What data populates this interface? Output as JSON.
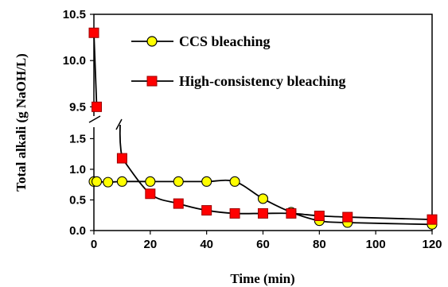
{
  "chart_data": {
    "type": "line",
    "xlabel": "Time (min)",
    "ylabel": "Total alkali (g NaOH/L)",
    "xlim": [
      0,
      120
    ],
    "x_ticks": [
      "0",
      "20",
      "40",
      "60",
      "80",
      "100",
      "120"
    ],
    "y_axis_break": true,
    "y_ticks_lower": [
      "0.0",
      "0.5",
      "1.0",
      "1.5"
    ],
    "ylim_lower": [
      0,
      1.7
    ],
    "y_ticks_upper": [
      "9.5",
      "10.0",
      "10.5"
    ],
    "ylim_upper": [
      9.4,
      10.5
    ],
    "grid": false,
    "legend_position": "top-right",
    "series": [
      {
        "name": "CCS bleaching",
        "marker": "circle",
        "marker_color": "#ffff00",
        "line_color": "#000000",
        "points": [
          {
            "x": 0,
            "y": 0.8
          },
          {
            "x": 1,
            "y": 0.8
          },
          {
            "x": 5,
            "y": 0.79
          },
          {
            "x": 10,
            "y": 0.8
          },
          {
            "x": 20,
            "y": 0.8
          },
          {
            "x": 30,
            "y": 0.8
          },
          {
            "x": 40,
            "y": 0.8
          },
          {
            "x": 50,
            "y": 0.8
          },
          {
            "x": 60,
            "y": 0.52
          },
          {
            "x": 70,
            "y": 0.3
          },
          {
            "x": 80,
            "y": 0.16
          },
          {
            "x": 90,
            "y": 0.13
          },
          {
            "x": 120,
            "y": 0.1
          }
        ]
      },
      {
        "name": "High-consistency bleaching",
        "marker": "square",
        "marker_color": "#ff0000",
        "line_color": "#000000",
        "points": [
          {
            "x": 0,
            "y": 10.3
          },
          {
            "x": 1,
            "y": 9.5
          },
          {
            "x": 10,
            "y": 1.18
          },
          {
            "x": 20,
            "y": 0.6
          },
          {
            "x": 30,
            "y": 0.44
          },
          {
            "x": 40,
            "y": 0.33
          },
          {
            "x": 50,
            "y": 0.28
          },
          {
            "x": 60,
            "y": 0.28
          },
          {
            "x": 70,
            "y": 0.28
          },
          {
            "x": 80,
            "y": 0.24
          },
          {
            "x": 90,
            "y": 0.22
          },
          {
            "x": 120,
            "y": 0.18
          }
        ]
      }
    ]
  }
}
